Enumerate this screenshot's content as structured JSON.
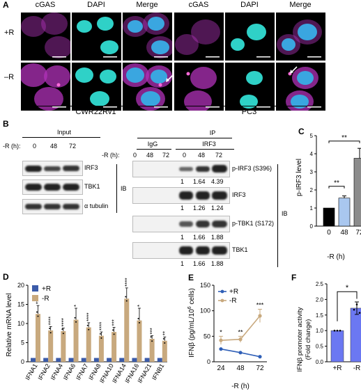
{
  "panelA": {
    "label": "A",
    "channel_headers": [
      "cGAS",
      "DAPI",
      "Merge",
      "cGAS",
      "DAPI",
      "Merge"
    ],
    "row_labels": [
      "+R",
      "–R"
    ],
    "cell_lines": [
      "CWR22Rv1",
      "PC3"
    ]
  },
  "panelB": {
    "label": "B",
    "input_title": "Input",
    "ip_title": "IP",
    "r_label": "-R (h):",
    "time_points": [
      "0",
      "48",
      "72"
    ],
    "igg_label": "IgG",
    "irf3_label": "IRF3",
    "ib_label": "IB",
    "input_blots": [
      "IRF3",
      "TBK1",
      "α tubulin"
    ],
    "ip_blots": [
      "p-IRF3 (S396)",
      "IRF3",
      "p-TBK1 (S172)",
      "TBK1"
    ],
    "ip_quant": [
      [
        "1",
        "1.64",
        "4.39"
      ],
      [
        "1",
        "1.26",
        "1.24"
      ],
      [
        "1",
        "1.66",
        "1.88"
      ],
      [
        "1",
        "1.66",
        "1.88"
      ]
    ]
  },
  "panelC": {
    "label": "C",
    "chart_data": {
      "type": "bar",
      "categories": [
        "0",
        "48",
        "72"
      ],
      "values": [
        1.0,
        1.55,
        3.75
      ],
      "errors": [
        0,
        0.12,
        0.55
      ],
      "colors": [
        "#000000",
        "#a9c7ef",
        "#8c8c8c"
      ],
      "ylabel": "p-IRF3 level",
      "xlabel": "-R (h)",
      "ylim": [
        0,
        5
      ],
      "yticks": [
        "0",
        "1",
        "2",
        "3",
        "4",
        "5"
      ],
      "significance": [
        "**",
        "**"
      ]
    }
  },
  "panelD": {
    "label": "D",
    "chart_data": {
      "type": "bar",
      "categories": [
        "IFNA1",
        "IFNA2",
        "IFNA4",
        "IFNA6",
        "IFNA7",
        "IFNA8",
        "IFNA10",
        "IFNA14",
        "IFNA16",
        "IFNA21",
        "IFNB1"
      ],
      "series": [
        {
          "name": "+R",
          "color": "#3b5ba9",
          "values": [
            1,
            1,
            1,
            1,
            1,
            1,
            1,
            1,
            1,
            1,
            1
          ]
        },
        {
          "name": "-R",
          "color": "#c8a97e",
          "values": [
            12.5,
            8.2,
            8.0,
            11.0,
            9.0,
            6.8,
            7.8,
            16.5,
            10.8,
            6.0,
            5.5
          ]
        }
      ],
      "errors": [
        2.2,
        1.0,
        0.8,
        3.0,
        1.2,
        1.0,
        1.2,
        2.8,
        3.2,
        0.8,
        1.0
      ],
      "significance": [
        "**",
        "****",
        "****",
        "*",
        "****",
        "****",
        "***",
        "****",
        "*",
        "***",
        "**"
      ],
      "ylabel": "Relative mRNA level",
      "ylim": [
        0,
        20
      ],
      "yticks": [
        "0",
        "5",
        "10",
        "15",
        "20"
      ],
      "legend": "top-left"
    }
  },
  "panelE": {
    "label": "E",
    "chart_data": {
      "type": "line",
      "x": [
        24,
        48,
        72
      ],
      "xticks": [
        "24",
        "48",
        "72"
      ],
      "series": [
        {
          "name": "+R",
          "color": "#2f5fb7",
          "values": [
            25,
            18,
            10
          ]
        },
        {
          "name": "-R",
          "color": "#c8a97e",
          "values": [
            42,
            44,
            90
          ]
        }
      ],
      "errors": [
        8,
        6,
        13
      ],
      "significance": [
        "*",
        "**",
        "***"
      ],
      "ylabel_main": "IFNβ (pg/mL/10",
      "ylabel_sup": "6",
      "ylabel_end": " cells)",
      "xlabel": "-R (h)",
      "ylim": [
        0,
        150
      ],
      "yticks": [
        "0",
        "50",
        "100",
        "150"
      ],
      "legend": "top-left"
    }
  },
  "panelF": {
    "label": "F",
    "chart_data": {
      "type": "bar",
      "categories": [
        "+R",
        "-R"
      ],
      "values": [
        1.0,
        1.72
      ],
      "errors": [
        0,
        0.2
      ],
      "color": "#6b78f2",
      "ylabel": "IFNβ promoter activity",
      "ylabel2": "(Fold change)",
      "ylim": [
        0,
        2.5
      ],
      "yticks": [
        "0.0",
        "0.5",
        "1.0",
        "1.5",
        "2.0",
        "2.5"
      ],
      "significance": [
        "*"
      ]
    }
  }
}
